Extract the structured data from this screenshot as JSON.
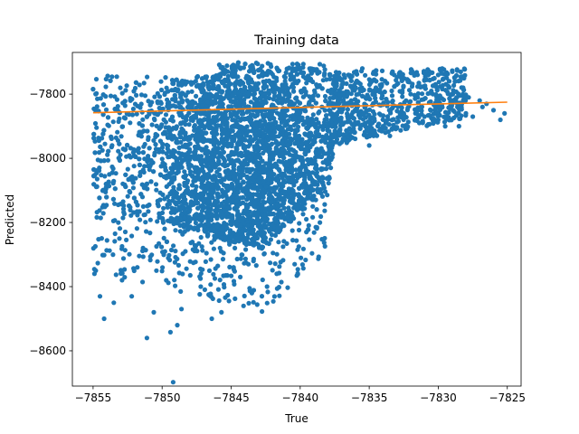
{
  "chart_data": {
    "type": "scatter",
    "title": "Training data",
    "xlabel": "True",
    "ylabel": "Predicted",
    "xlim": [
      -7856.5,
      -7824
    ],
    "ylim": [
      -8710,
      -7670
    ],
    "x_ticks": [
      -7855,
      -7850,
      -7845,
      -7840,
      -7835,
      -7830,
      -7825
    ],
    "x_tick_labels": [
      "−7855",
      "−7850",
      "−7845",
      "−7840",
      "−7835",
      "−7830",
      "−7825"
    ],
    "y_ticks": [
      -7800,
      -8000,
      -8200,
      -8400,
      -8600
    ],
    "y_tick_labels": [
      "−7800",
      "−8000",
      "−8200",
      "−8400",
      "−8600"
    ],
    "grid": false,
    "legend": "none",
    "series": [
      {
        "kind": "points",
        "color": "#1f77b4",
        "outliers": [
          [
            -7849.2,
            -8698
          ],
          [
            -7851.1,
            -8560
          ],
          [
            -7849.4,
            -8542
          ],
          [
            -7850.6,
            -8480
          ],
          [
            -7848.6,
            -8470
          ],
          [
            -7853.5,
            -8450
          ],
          [
            -7852.2,
            -8430
          ],
          [
            -7854.5,
            -8430
          ],
          [
            -7844.1,
            -8460
          ],
          [
            -7846.4,
            -8500
          ],
          [
            -7843.5,
            -8420
          ],
          [
            -7848.9,
            -8520
          ],
          [
            -7845.7,
            -8480
          ],
          [
            -7847.2,
            -8400
          ],
          [
            -7842.4,
            -8400
          ],
          [
            -7840.4,
            -8330
          ],
          [
            -7841.7,
            -8360
          ],
          [
            -7852.9,
            -8380
          ],
          [
            -7854.2,
            -8500
          ],
          [
            -7854.9,
            -8360
          ]
        ],
        "right_tail": [
          [
            -7836.0,
            -7830
          ],
          [
            -7834.0,
            -7900
          ],
          [
            -7833.5,
            -7930
          ],
          [
            -7832.5,
            -7860
          ],
          [
            -7831.0,
            -7870
          ],
          [
            -7830.0,
            -7880
          ],
          [
            -7829.5,
            -7900
          ],
          [
            -7828.5,
            -7900
          ],
          [
            -7828.0,
            -7860
          ],
          [
            -7827.5,
            -7870
          ],
          [
            -7827.0,
            -7820
          ],
          [
            -7826.5,
            -7830
          ],
          [
            -7826.0,
            -7850
          ],
          [
            -7825.5,
            -7880
          ],
          [
            -7825.2,
            -7860
          ],
          [
            -7826.8,
            -7840
          ],
          [
            -7829.0,
            -7820
          ],
          [
            -7830.5,
            -7790
          ],
          [
            -7832.0,
            -7800
          ],
          [
            -7833.0,
            -7770
          ],
          [
            -7834.5,
            -7760
          ],
          [
            -7836.5,
            -7740
          ],
          [
            -7835.5,
            -7720
          ],
          [
            -7831.5,
            -7740
          ],
          [
            -7828.2,
            -7780
          ],
          [
            -7827.8,
            -7810
          ],
          [
            -7835.0,
            -7960
          ],
          [
            -7837.0,
            -7950
          ]
        ]
      },
      {
        "kind": "line",
        "color": "#ff7f0e",
        "x": [
          -7855,
          -7825
        ],
        "y": [
          -7858,
          -7825
        ]
      }
    ]
  }
}
